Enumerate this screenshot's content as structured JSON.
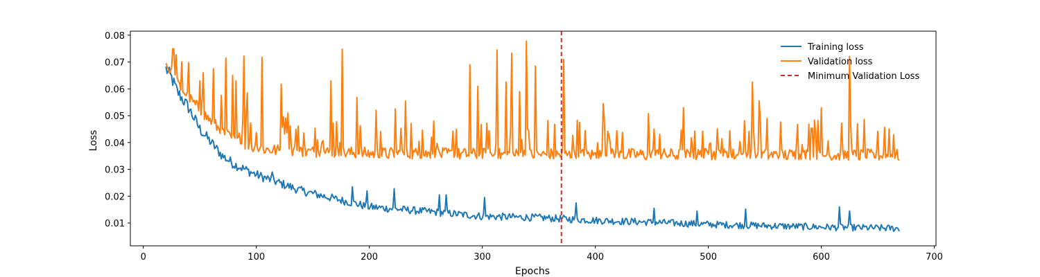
{
  "chart_data": {
    "type": "line",
    "title": "",
    "xlabel": "Epochs",
    "ylabel": "Loss",
    "xlim": [
      -11.5,
      701.5
    ],
    "ylim": [
      0.0015,
      0.0815
    ],
    "xticks": [
      0,
      100,
      200,
      300,
      400,
      500,
      600,
      700
    ],
    "yticks": [
      0.01,
      0.02,
      0.03,
      0.04,
      0.05,
      0.06,
      0.07,
      0.08
    ],
    "ytick_labels": [
      "0.01",
      "0.02",
      "0.03",
      "0.04",
      "0.05",
      "0.06",
      "0.07",
      "0.08"
    ],
    "grid": false,
    "legend_position": "top-right",
    "x_start": 20,
    "x_end": 669,
    "series": [
      {
        "name": "Training loss",
        "color": "#1f77b4",
        "style": "solid",
        "keypoints": [
          [
            20,
            0.0675
          ],
          [
            25,
            0.064
          ],
          [
            30,
            0.059
          ],
          [
            40,
            0.053
          ],
          [
            50,
            0.045
          ],
          [
            60,
            0.04
          ],
          [
            70,
            0.035
          ],
          [
            80,
            0.032
          ],
          [
            90,
            0.03
          ],
          [
            100,
            0.028
          ],
          [
            120,
            0.025
          ],
          [
            140,
            0.022
          ],
          [
            160,
            0.02
          ],
          [
            180,
            0.018
          ],
          [
            200,
            0.016
          ],
          [
            230,
            0.015
          ],
          [
            260,
            0.014
          ],
          [
            300,
            0.0125
          ],
          [
            350,
            0.012
          ],
          [
            400,
            0.011
          ],
          [
            450,
            0.0103
          ],
          [
            500,
            0.0095
          ],
          [
            550,
            0.009
          ],
          [
            600,
            0.0085
          ],
          [
            669,
            0.008
          ]
        ],
        "noise": 0.0018,
        "spikes": [
          [
            114,
            0.029
          ],
          [
            185,
            0.0235
          ],
          [
            198,
            0.022
          ],
          [
            222,
            0.0228
          ],
          [
            262,
            0.0205
          ],
          [
            268,
            0.0205
          ],
          [
            302,
            0.0195
          ],
          [
            383,
            0.0175
          ],
          [
            452,
            0.0155
          ],
          [
            490,
            0.0145
          ],
          [
            533,
            0.0152
          ],
          [
            616,
            0.016
          ],
          [
            625,
            0.0145
          ]
        ]
      },
      {
        "name": "Validation loss",
        "color": "#ff7f0e",
        "style": "solid",
        "keypoints": [
          [
            20,
            0.0705
          ],
          [
            25,
            0.067
          ],
          [
            30,
            0.063
          ],
          [
            40,
            0.058
          ],
          [
            50,
            0.053
          ],
          [
            60,
            0.049
          ],
          [
            70,
            0.045
          ],
          [
            80,
            0.042
          ],
          [
            90,
            0.04
          ],
          [
            100,
            0.039
          ],
          [
            120,
            0.038
          ],
          [
            150,
            0.0375
          ],
          [
            200,
            0.037
          ],
          [
            250,
            0.0368
          ],
          [
            300,
            0.0366
          ],
          [
            370,
            0.0365
          ],
          [
            450,
            0.0365
          ],
          [
            550,
            0.0365
          ],
          [
            669,
            0.0362
          ]
        ],
        "noise": 0.0022,
        "spikes": [
          [
            26,
            0.075
          ],
          [
            34,
            0.07
          ],
          [
            50,
            0.063
          ],
          [
            53,
            0.066
          ],
          [
            62,
            0.0675
          ],
          [
            73,
            0.0715
          ],
          [
            79,
            0.065
          ],
          [
            82,
            0.063
          ],
          [
            89,
            0.0722
          ],
          [
            92,
            0.0585
          ],
          [
            105,
            0.0718
          ],
          [
            122,
            0.0618
          ],
          [
            128,
            0.051
          ],
          [
            166,
            0.063
          ],
          [
            176,
            0.0748
          ],
          [
            189,
            0.0568
          ],
          [
            206,
            0.052
          ],
          [
            223,
            0.0525
          ],
          [
            232,
            0.0555
          ],
          [
            289,
            0.069
          ],
          [
            296,
            0.061
          ],
          [
            313,
            0.0745
          ],
          [
            321,
            0.0625
          ],
          [
            326,
            0.0732
          ],
          [
            333,
            0.059
          ],
          [
            339,
            0.0778
          ],
          [
            347,
            0.0685
          ],
          [
            364,
            0.0468
          ],
          [
            372,
            0.071
          ],
          [
            407,
            0.0545
          ],
          [
            447,
            0.0508
          ],
          [
            478,
            0.053
          ],
          [
            539,
            0.0625
          ],
          [
            545,
            0.0555
          ],
          [
            552,
            0.049
          ],
          [
            600,
            0.053
          ],
          [
            625,
            0.072
          ],
          [
            632,
            0.047
          ]
        ]
      }
    ],
    "vertical_lines": [
      {
        "name": "Minimum Validation Loss",
        "x": 370,
        "color": "#d62728",
        "style": "dashed"
      }
    ]
  }
}
